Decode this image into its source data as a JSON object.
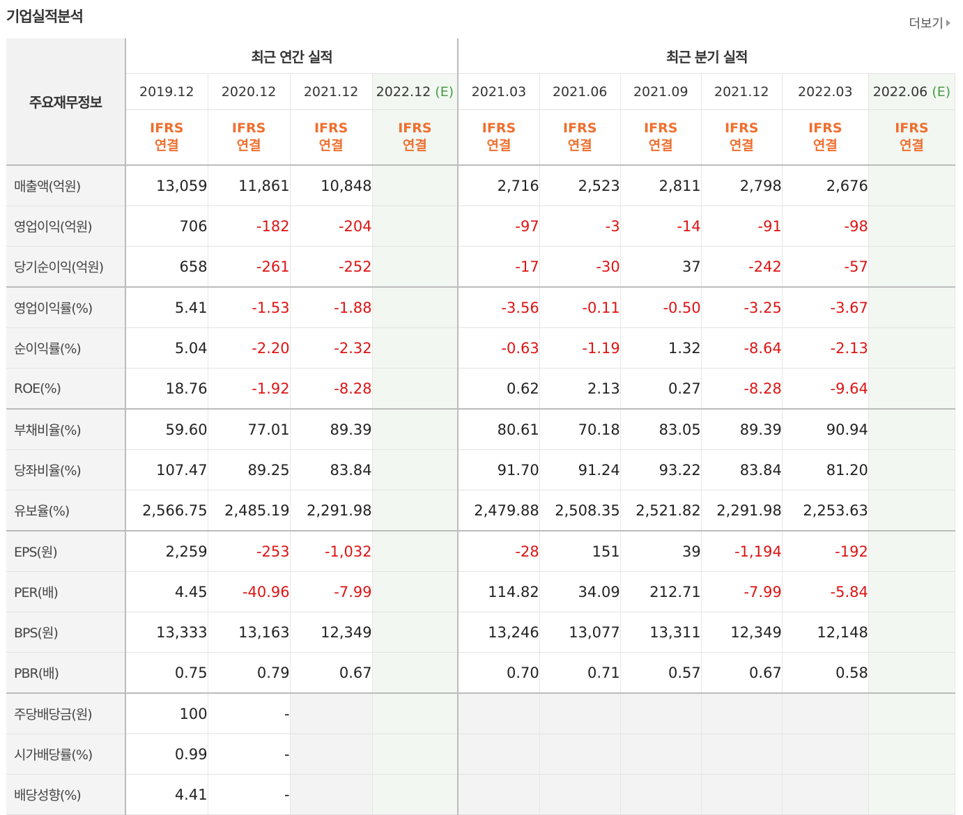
{
  "section_title": "기업실적분석",
  "more_label": "더보기",
  "label_header": "주요재무정보",
  "annual_group": "최근 연간 실적",
  "quarter_group": "최근 분기 실적",
  "annual_periods": [
    {
      "date": "2019.12",
      "est": ""
    },
    {
      "date": "2020.12",
      "est": ""
    },
    {
      "date": "2021.12",
      "est": ""
    },
    {
      "date": "2022.12",
      "est": "(E)"
    }
  ],
  "quarter_periods": [
    {
      "date": "2021.03",
      "est": ""
    },
    {
      "date": "2021.06",
      "est": ""
    },
    {
      "date": "2021.09",
      "est": ""
    },
    {
      "date": "2021.12",
      "est": ""
    },
    {
      "date": "2022.03",
      "est": ""
    },
    {
      "date": "2022.06",
      "est": "(E)"
    }
  ],
  "ifrs_line1": "IFRS",
  "ifrs_line2": "연결",
  "rows": [
    {
      "label": "매출액(억원)",
      "annual": [
        "13,059",
        "11,861",
        "10,848",
        ""
      ],
      "quarter": [
        "2,716",
        "2,523",
        "2,811",
        "2,798",
        "2,676",
        ""
      ]
    },
    {
      "label": "영업이익(억원)",
      "annual": [
        "706",
        "-182",
        "-204",
        ""
      ],
      "quarter": [
        "-97",
        "-3",
        "-14",
        "-91",
        "-98",
        ""
      ]
    },
    {
      "label": "당기순이익(억원)",
      "annual": [
        "658",
        "-261",
        "-252",
        ""
      ],
      "quarter": [
        "-17",
        "-30",
        "37",
        "-242",
        "-57",
        ""
      ]
    },
    {
      "label": "영업이익률(%)",
      "annual": [
        "5.41",
        "-1.53",
        "-1.88",
        ""
      ],
      "quarter": [
        "-3.56",
        "-0.11",
        "-0.50",
        "-3.25",
        "-3.67",
        ""
      ]
    },
    {
      "label": "순이익률(%)",
      "annual": [
        "5.04",
        "-2.20",
        "-2.32",
        ""
      ],
      "quarter": [
        "-0.63",
        "-1.19",
        "1.32",
        "-8.64",
        "-2.13",
        ""
      ]
    },
    {
      "label": "ROE(%)",
      "annual": [
        "18.76",
        "-1.92",
        "-8.28",
        ""
      ],
      "quarter": [
        "0.62",
        "2.13",
        "0.27",
        "-8.28",
        "-9.64",
        ""
      ]
    },
    {
      "label": "부채비율(%)",
      "annual": [
        "59.60",
        "77.01",
        "89.39",
        ""
      ],
      "quarter": [
        "80.61",
        "70.18",
        "83.05",
        "89.39",
        "90.94",
        ""
      ]
    },
    {
      "label": "당좌비율(%)",
      "annual": [
        "107.47",
        "89.25",
        "83.84",
        ""
      ],
      "quarter": [
        "91.70",
        "91.24",
        "93.22",
        "83.84",
        "81.20",
        ""
      ]
    },
    {
      "label": "유보율(%)",
      "annual": [
        "2,566.75",
        "2,485.19",
        "2,291.98",
        ""
      ],
      "quarter": [
        "2,479.88",
        "2,508.35",
        "2,521.82",
        "2,291.98",
        "2,253.63",
        ""
      ]
    },
    {
      "label": "EPS(원)",
      "annual": [
        "2,259",
        "-253",
        "-1,032",
        ""
      ],
      "quarter": [
        "-28",
        "151",
        "39",
        "-1,194",
        "-192",
        ""
      ]
    },
    {
      "label": "PER(배)",
      "annual": [
        "4.45",
        "-40.96",
        "-7.99",
        ""
      ],
      "quarter": [
        "114.82",
        "34.09",
        "212.71",
        "-7.99",
        "-5.84",
        ""
      ]
    },
    {
      "label": "BPS(원)",
      "annual": [
        "13,333",
        "13,163",
        "12,349",
        ""
      ],
      "quarter": [
        "13,246",
        "13,077",
        "13,311",
        "12,349",
        "12,148",
        ""
      ]
    },
    {
      "label": "PBR(배)",
      "annual": [
        "0.75",
        "0.79",
        "0.67",
        ""
      ],
      "quarter": [
        "0.70",
        "0.71",
        "0.57",
        "0.67",
        "0.58",
        ""
      ]
    },
    {
      "label": "주당배당금(원)",
      "annual": [
        "100",
        "-",
        "",
        ""
      ],
      "quarter": [
        "",
        "",
        "",
        "",
        "",
        ""
      ]
    },
    {
      "label": "시가배당률(%)",
      "annual": [
        "0.99",
        "-",
        "",
        ""
      ],
      "quarter": [
        "",
        "",
        "",
        "",
        "",
        ""
      ]
    },
    {
      "label": "배당성향(%)",
      "annual": [
        "4.41",
        "-",
        "",
        ""
      ],
      "quarter": [
        "",
        "",
        "",
        "",
        "",
        ""
      ]
    }
  ],
  "colors": {
    "negative": "#dd1414",
    "ifrs": "#ef6f2e",
    "estimate": "#4a9a4a"
  }
}
